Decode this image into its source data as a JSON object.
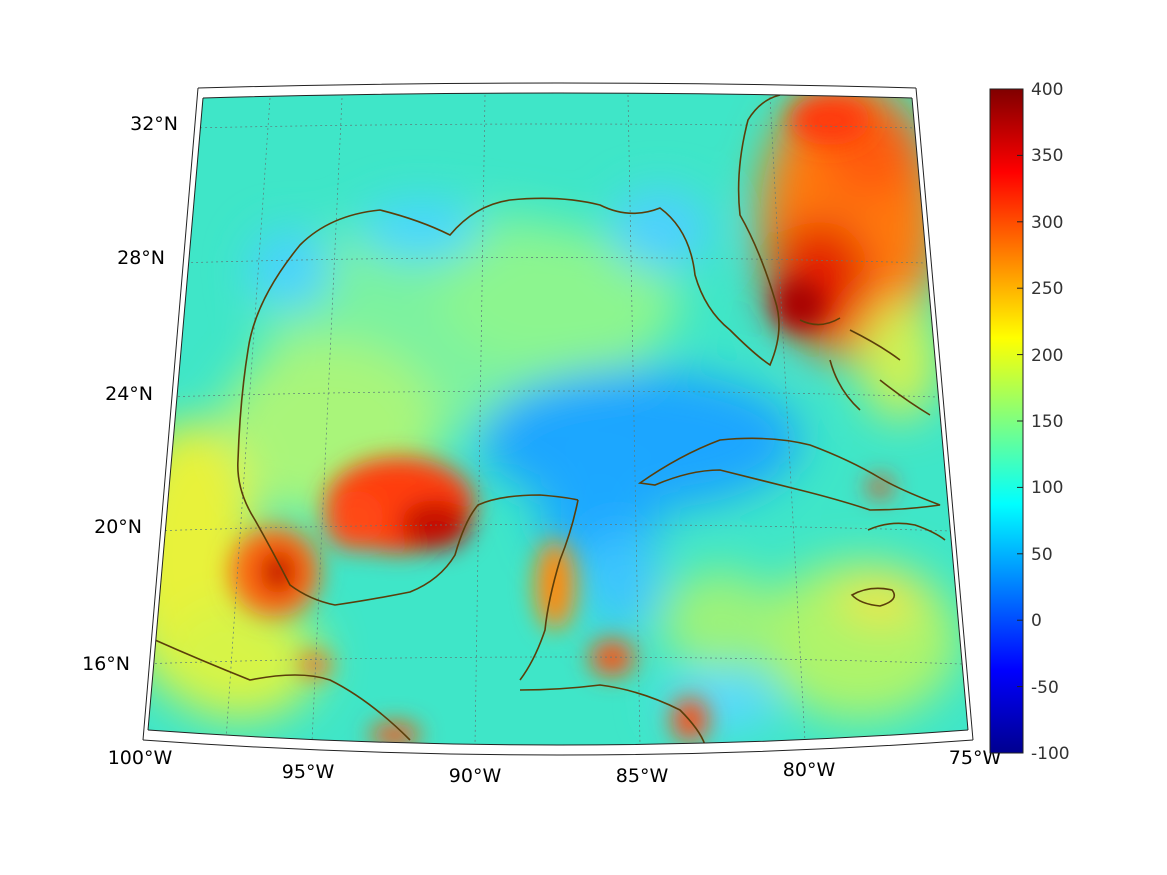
{
  "map": {
    "projection": "lambert-conic",
    "extent": {
      "lon": [
        -100,
        -75
      ],
      "lat": [
        14,
        32
      ]
    },
    "lat_tick_labels": [
      "32°N",
      "28°N",
      "24°N",
      "20°N",
      "16°N"
    ],
    "lon_tick_labels": [
      "100°W",
      "95°W",
      "90°W",
      "85°W",
      "80°W",
      "75°W"
    ],
    "grid": true,
    "coastline_color": "#5a3e0a"
  },
  "colorbar": {
    "colormap": "jet",
    "range": [
      -100,
      400
    ],
    "tick_labels": [
      "400",
      "350",
      "300",
      "250",
      "200",
      "150",
      "100",
      "50",
      "0",
      "-50",
      "-100"
    ]
  },
  "field": {
    "background_value": 120,
    "notable_regions": [
      {
        "name": "florida-straits-atlantic-high",
        "value": 330
      },
      {
        "name": "bay-of-campeche-high",
        "value": 340
      },
      {
        "name": "veracruz-coast-high",
        "value": 300
      },
      {
        "name": "yucatan-channel-low",
        "value": 60
      },
      {
        "name": "belize-coast-high",
        "value": 270
      },
      {
        "name": "honduras-coast-high",
        "value": 280
      }
    ]
  }
}
